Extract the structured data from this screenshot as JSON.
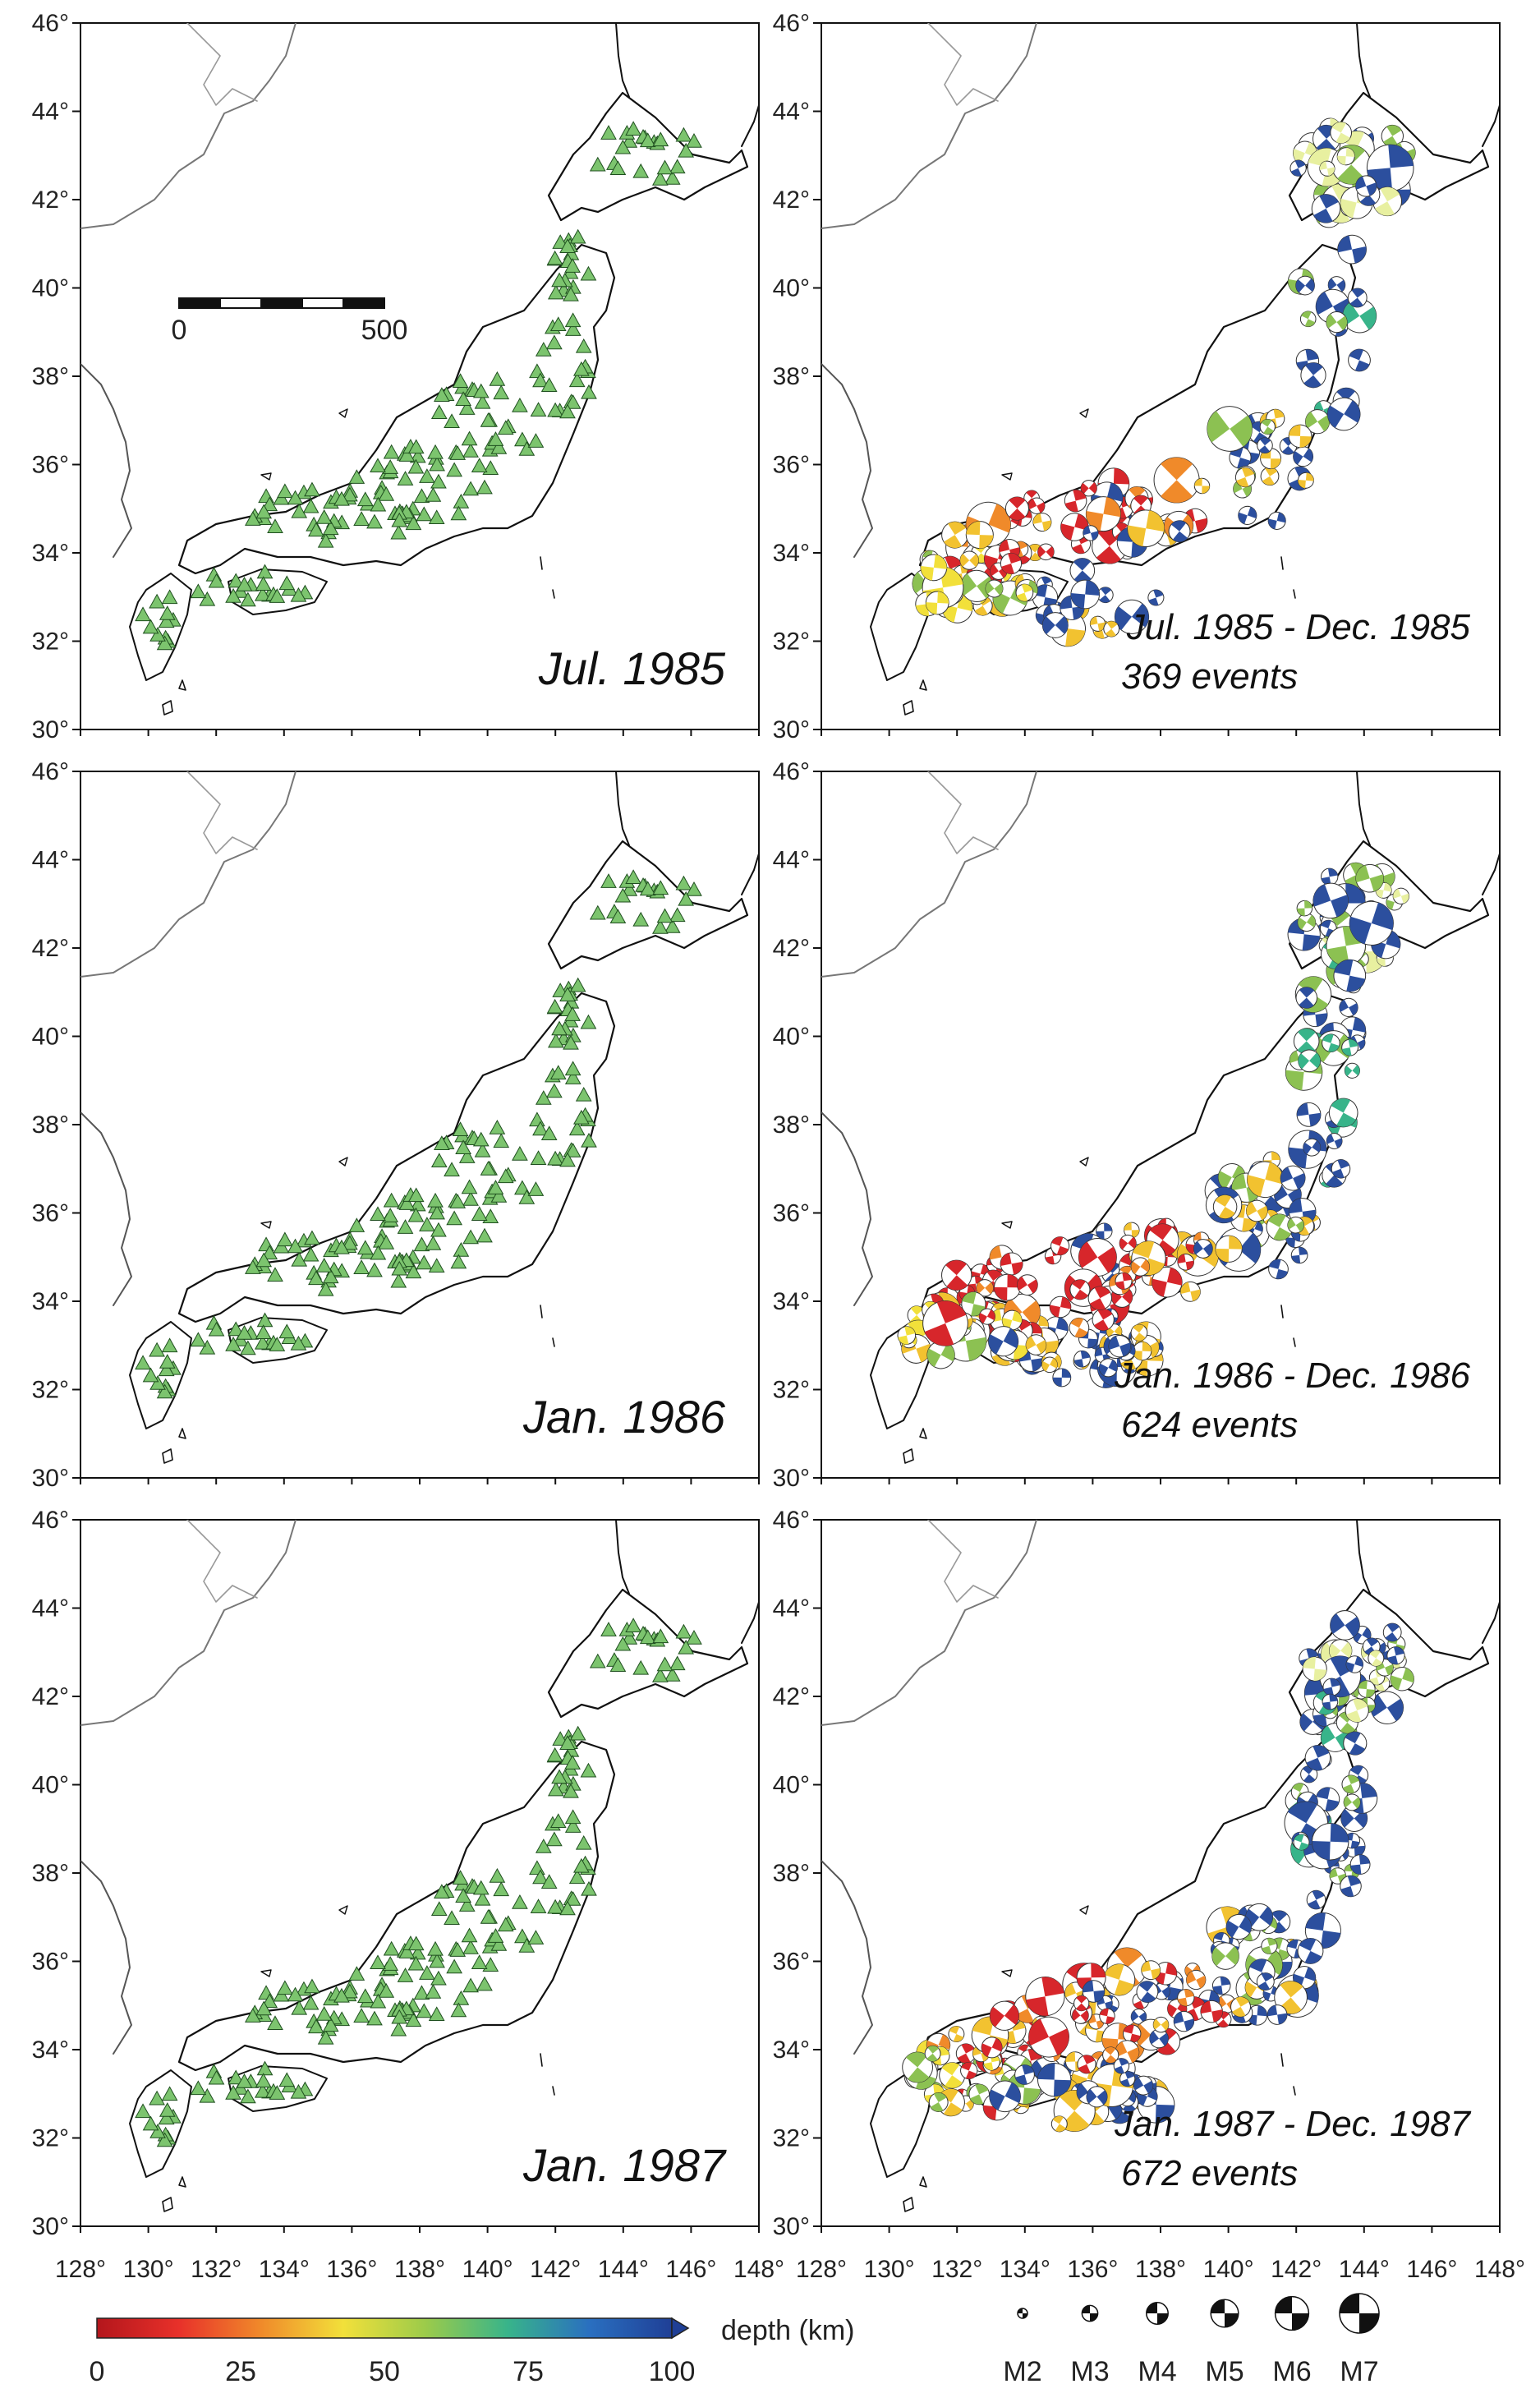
{
  "colors": {
    "station": "#7cc46e",
    "station_edge": "#1f4f1f",
    "coast": "#111111",
    "asia_coast": "#777777",
    "shallow": "#d7262b",
    "mid": "#f2c230",
    "deep": "#2c4f9e",
    "green": "#8cc152"
  },
  "map_axes": {
    "lon_range": [
      128,
      148
    ],
    "lat_range": [
      30,
      46
    ],
    "lon_ticks": [
      "128°",
      "130°",
      "132°",
      "134°",
      "136°",
      "138°",
      "140°",
      "142°",
      "144°",
      "146°",
      "148°"
    ],
    "lat_ticks": [
      "30°",
      "32°",
      "34°",
      "36°",
      "38°",
      "40°",
      "42°",
      "44°",
      "46°"
    ]
  },
  "scale_bar": {
    "left_label": "0",
    "right_label": "500"
  },
  "rows": [
    {
      "station_label": "Jul. 1985",
      "period": "Jul. 1985 - Dec. 1985",
      "events": "369 events"
    },
    {
      "station_label": "Jan. 1986",
      "period": "Jan. 1986 - Dec. 1986",
      "events": "624 events"
    },
    {
      "station_label": "Jan. 1987",
      "period": "Jan. 1987 - Dec. 1987",
      "events": "672 events"
    }
  ],
  "depth_colorbar": {
    "label": "depth (km)",
    "ticks": [
      "0",
      "25",
      "50",
      "75",
      "100"
    ],
    "stops": [
      "#b4161c",
      "#e8312a",
      "#f08a2a",
      "#f2e03a",
      "#9ccb4a",
      "#38b48a",
      "#2a6fc0",
      "#1f3f96"
    ]
  },
  "magnitude_legend": [
    "M2",
    "M3",
    "M4",
    "M5",
    "M6",
    "M7"
  ]
}
